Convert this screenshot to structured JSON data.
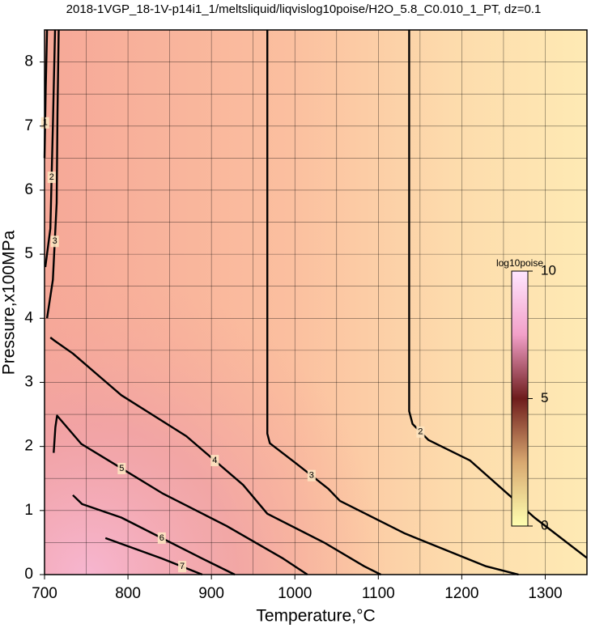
{
  "chart_data": {
    "type": "contour",
    "title": "2018-1VGP_18-1V-p14i1_1/meltsliquid/liqvislog10poise/H2O_5.8_C0.010_1_PT, dz=0.1",
    "x_label": "Temperature,°C",
    "y_label": "Pressure,x100MPa",
    "xlim": [
      700,
      1350
    ],
    "ylim": [
      0,
      8.5
    ],
    "xticks": [
      700,
      800,
      900,
      1000,
      1100,
      1200,
      1300
    ],
    "yticks": [
      0,
      1,
      2,
      3,
      4,
      5,
      6,
      7,
      8
    ],
    "xgrid": [
      750,
      850,
      950,
      1050,
      1150,
      1250
    ],
    "ygrid": [
      0.5,
      1.5,
      2.5,
      3.5,
      4.5,
      5.5,
      6.5,
      7.5
    ],
    "color": "#000000",
    "contours": [
      {
        "level": 1,
        "x": [
          703,
          701.5,
          700
        ],
        "y": [
          8.5,
          7.6,
          6.5
        ]
      },
      {
        "level": 2,
        "x": [
          712.6,
          710,
          707,
          701
        ],
        "y": [
          8.5,
          7,
          5.4,
          4.8
        ]
      },
      {
        "level": 3,
        "x": [
          717,
          715.5,
          714.6,
          710,
          703
        ],
        "y": [
          8.5,
          7.2,
          5.8,
          4.6,
          4.0
        ]
      },
      {
        "level": 2,
        "x": [
          1137,
          1137,
          1137,
          1141,
          1160,
          1210,
          1287,
          1350
        ],
        "y": [
          8.5,
          5.3,
          2.55,
          2.35,
          2.1,
          1.78,
          0.89,
          0.26
        ]
      },
      {
        "level": 3,
        "x": [
          967,
          967,
          967,
          970,
          1000,
          1040,
          1054,
          1132,
          1229,
          1268
        ],
        "y": [
          8.5,
          4.5,
          2.2,
          2.05,
          1.75,
          1.34,
          1.15,
          0.64,
          0.13,
          0
        ]
      },
      {
        "level": 4,
        "x": [
          707,
          712,
          734,
          792,
          870,
          938,
          967,
          1035,
          1083,
          1103
        ],
        "y": [
          3.7,
          3.65,
          3.45,
          2.8,
          2.16,
          1.4,
          0.95,
          0.5,
          0.13,
          0
        ]
      },
      {
        "level": 5,
        "x": [
          711,
          713,
          715,
          744,
          841,
          918,
          986,
          1015
        ],
        "y": [
          1.9,
          2.3,
          2.48,
          2.04,
          1.27,
          0.76,
          0.25,
          0
        ]
      },
      {
        "level": 6,
        "x": [
          734,
          745,
          792,
          889,
          928
        ],
        "y": [
          1.24,
          1.1,
          0.89,
          0.25,
          0
        ]
      },
      {
        "level": 7,
        "x": [
          773,
          841,
          889
        ],
        "y": [
          0.57,
          0.25,
          0
        ]
      }
    ],
    "colorbar": {
      "label": "log10poise",
      "lim": [
        0,
        10
      ],
      "ticks": [
        0,
        5,
        10
      ]
    }
  }
}
